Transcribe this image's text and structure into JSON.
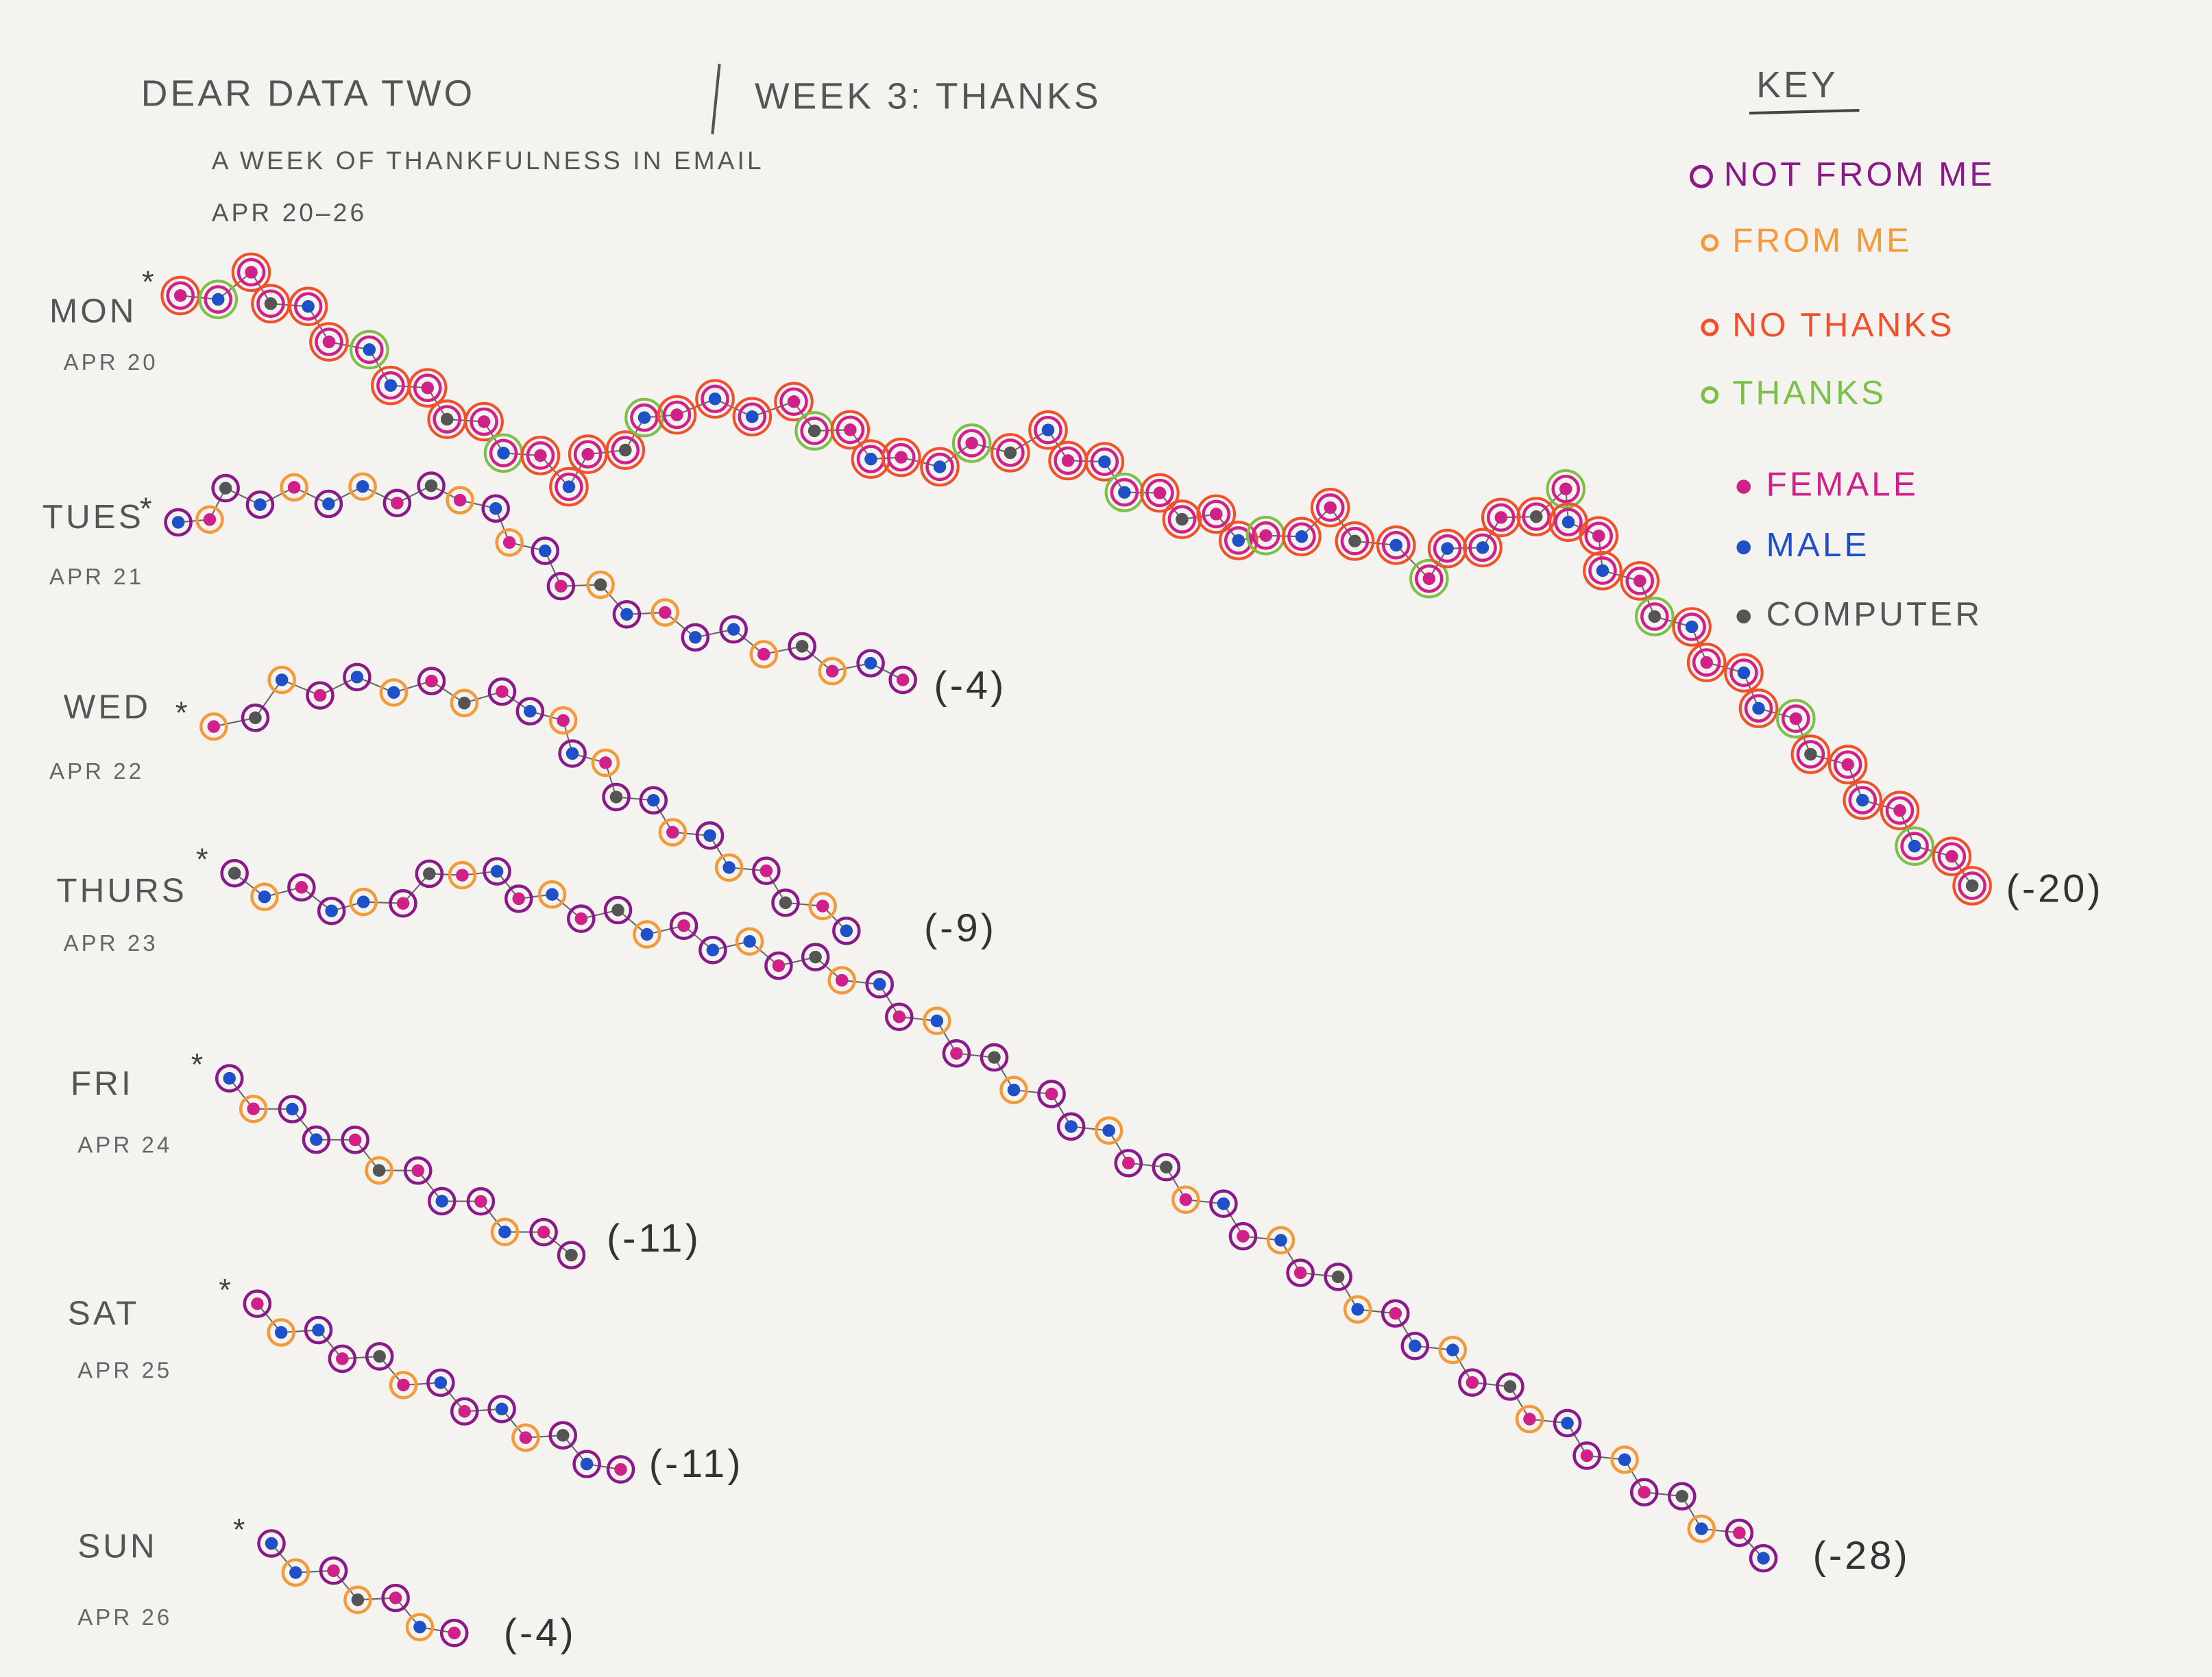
{
  "header": {
    "title": "Dear Data Two",
    "week": "Week 3: Thanks",
    "subtitle": "A week of thankfulness in email",
    "dates": "Apr 20–26"
  },
  "key": {
    "title": "Key",
    "items": [
      {
        "label": "Not from me",
        "color": "#8a1a8a"
      },
      {
        "label": "From me",
        "color": "#f39a3a"
      },
      {
        "label": "No thanks",
        "color": "#f0502a"
      },
      {
        "label": "Thanks",
        "color": "#7cc04a"
      },
      {
        "label": "Female",
        "color": "#d0208a"
      },
      {
        "label": "Male",
        "color": "#2050c8"
      },
      {
        "label": "Computer",
        "color": "#555555"
      }
    ]
  },
  "days": [
    {
      "day": "Mon",
      "date": "Apr 20",
      "total": "(-20)"
    },
    {
      "day": "Tues",
      "date": "Apr 21",
      "total": "(-4)"
    },
    {
      "day": "Wed",
      "date": "Apr 22",
      "total": "(-9)"
    },
    {
      "day": "Thurs",
      "date": "Apr 23",
      "total": "(-28)"
    },
    {
      "day": "Fri",
      "date": "Apr 24",
      "total": "(-11)"
    },
    {
      "day": "Sat",
      "date": "Apr 25",
      "total": "(-11)"
    },
    {
      "day": "Sun",
      "date": "Apr 26",
      "total": "(-4)"
    }
  ]
}
